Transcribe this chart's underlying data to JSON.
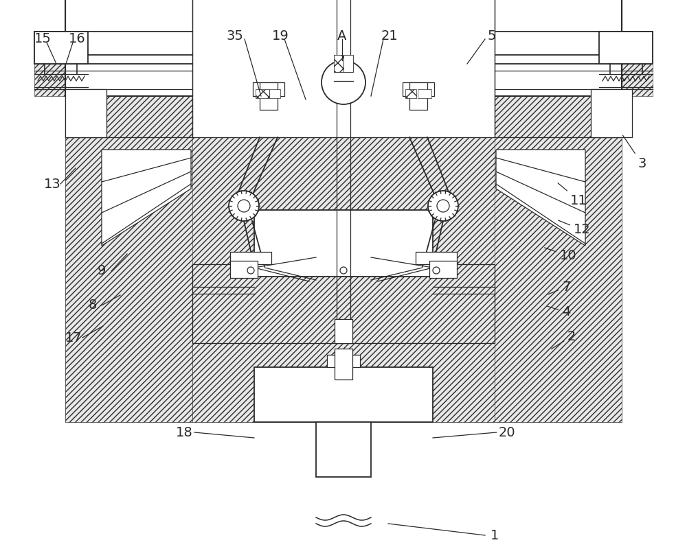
{
  "bg_color": "#ffffff",
  "lc": "#2a2a2a",
  "lw": 1.3,
  "lt": 0.9,
  "fs": 14,
  "figsize": [
    10.0,
    8.16
  ],
  "dpi": 100
}
